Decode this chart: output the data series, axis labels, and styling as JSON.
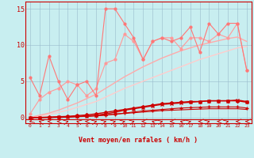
{
  "xlabel": "Vent moyen/en rafales ( km/h )",
  "xlim": [
    -0.5,
    23.5
  ],
  "ylim": [
    -0.8,
    16
  ],
  "yticks": [
    0,
    5,
    10,
    15
  ],
  "xticks": [
    0,
    1,
    2,
    3,
    4,
    5,
    6,
    7,
    8,
    9,
    10,
    11,
    12,
    13,
    14,
    15,
    16,
    17,
    18,
    19,
    20,
    21,
    22,
    23
  ],
  "bg_color": "#c8eef0",
  "grid_color": "#99bbcc",
  "lines": [
    {
      "x": [
        0,
        1,
        2,
        3,
        4,
        5,
        6,
        7,
        8,
        9,
        10,
        11,
        12,
        13,
        14,
        15,
        16,
        17,
        18,
        19,
        20,
        21,
        22,
        23
      ],
      "y": [
        0.0,
        0.2,
        0.4,
        0.7,
        1.0,
        1.4,
        1.8,
        2.2,
        2.8,
        3.4,
        4.0,
        4.5,
        5.0,
        5.5,
        6.0,
        6.5,
        7.0,
        7.5,
        8.0,
        8.4,
        8.8,
        9.2,
        9.6,
        9.8
      ],
      "color": "#ffcccc",
      "lw": 1.0,
      "marker": null,
      "alpha": 1.0
    },
    {
      "x": [
        0,
        1,
        2,
        3,
        4,
        5,
        6,
        7,
        8,
        9,
        10,
        11,
        12,
        13,
        14,
        15,
        16,
        17,
        18,
        19,
        20,
        21,
        22,
        23
      ],
      "y": [
        0.0,
        0.3,
        0.6,
        1.0,
        1.5,
        2.0,
        2.6,
        3.2,
        4.0,
        4.8,
        5.6,
        6.3,
        7.0,
        7.6,
        8.2,
        8.7,
        9.2,
        9.6,
        10.0,
        10.3,
        10.6,
        10.9,
        11.1,
        10.5
      ],
      "color": "#ffaaaa",
      "lw": 1.0,
      "marker": null,
      "alpha": 1.0
    },
    {
      "x": [
        0,
        1,
        2,
        3,
        4,
        5,
        6,
        7,
        8,
        9,
        10,
        11,
        12,
        13,
        14,
        15,
        16,
        17,
        18,
        19,
        20,
        21,
        22,
        23
      ],
      "y": [
        0.5,
        2.5,
        3.5,
        4.0,
        5.0,
        4.5,
        3.0,
        4.0,
        7.5,
        8.0,
        11.5,
        10.5,
        8.0,
        10.5,
        11.0,
        11.0,
        9.5,
        11.0,
        11.0,
        10.5,
        11.5,
        11.0,
        13.0,
        6.5
      ],
      "color": "#ff9999",
      "lw": 0.8,
      "marker": "o",
      "markersize": 2.0,
      "alpha": 1.0
    },
    {
      "x": [
        0,
        1,
        2,
        3,
        4,
        5,
        6,
        7,
        8,
        9,
        10,
        11,
        12,
        13,
        14,
        15,
        16,
        17,
        18,
        19,
        20,
        21,
        22,
        23
      ],
      "y": [
        5.5,
        3.0,
        8.5,
        5.0,
        2.5,
        4.5,
        5.0,
        3.0,
        15.0,
        15.0,
        13.0,
        11.0,
        8.0,
        10.5,
        11.0,
        10.5,
        11.0,
        12.5,
        9.0,
        13.0,
        11.5,
        13.0,
        13.0,
        6.5
      ],
      "color": "#ff7777",
      "lw": 0.8,
      "marker": "o",
      "markersize": 2.0,
      "alpha": 1.0
    },
    {
      "x": [
        0,
        1,
        2,
        3,
        4,
        5,
        6,
        7,
        8,
        9,
        10,
        11,
        12,
        13,
        14,
        15,
        16,
        17,
        18,
        19,
        20,
        21,
        22,
        23
      ],
      "y": [
        0.0,
        0.0,
        0.05,
        0.1,
        0.15,
        0.25,
        0.35,
        0.5,
        0.7,
        0.9,
        1.1,
        1.3,
        1.5,
        1.7,
        1.9,
        2.0,
        2.1,
        2.2,
        2.2,
        2.3,
        2.3,
        2.3,
        2.3,
        2.1
      ],
      "color": "#cc0000",
      "lw": 1.0,
      "marker": "D",
      "markersize": 2.0,
      "alpha": 1.0
    },
    {
      "x": [
        0,
        1,
        2,
        3,
        4,
        5,
        6,
        7,
        8,
        9,
        10,
        11,
        12,
        13,
        14,
        15,
        16,
        17,
        18,
        19,
        20,
        21,
        22,
        23
      ],
      "y": [
        0.0,
        0.0,
        0.02,
        0.05,
        0.08,
        0.12,
        0.18,
        0.25,
        0.35,
        0.45,
        0.55,
        0.65,
        0.75,
        0.85,
        0.95,
        1.0,
        1.05,
        1.1,
        1.15,
        1.2,
        1.2,
        1.2,
        1.2,
        1.1
      ],
      "color": "#cc0000",
      "lw": 0.8,
      "marker": null,
      "alpha": 1.0
    },
    {
      "x": [
        0,
        1,
        2,
        3,
        4,
        5,
        6,
        7,
        8,
        9,
        10,
        11,
        12,
        13,
        14,
        15,
        16,
        17,
        18,
        19,
        20,
        21,
        22,
        23
      ],
      "y": [
        0.0,
        0.0,
        0.0,
        0.05,
        0.1,
        0.15,
        0.2,
        0.3,
        0.5,
        0.7,
        1.0,
        1.2,
        1.4,
        1.6,
        1.8,
        1.9,
        2.0,
        2.1,
        2.2,
        2.3,
        2.3,
        2.3,
        2.4,
        2.2
      ],
      "color": "#cc0000",
      "lw": 1.0,
      "marker": "x",
      "markersize": 3.0,
      "alpha": 1.0
    },
    {
      "x": [
        0,
        1,
        2,
        3,
        4,
        5,
        6,
        7,
        8,
        9,
        10,
        11,
        12,
        13,
        14,
        15,
        16,
        17,
        18,
        19,
        20,
        21,
        22,
        23
      ],
      "y": [
        0.0,
        0.0,
        0.0,
        0.0,
        0.05,
        0.1,
        0.15,
        0.2,
        0.3,
        0.45,
        0.6,
        0.75,
        0.9,
        1.0,
        1.1,
        1.2,
        1.3,
        1.35,
        1.4,
        1.45,
        1.45,
        1.45,
        1.45,
        1.3
      ],
      "color": "#cc0000",
      "lw": 0.8,
      "marker": "+",
      "markersize": 3.0,
      "alpha": 1.0
    }
  ],
  "wind_arrows": [
    [
      0,
      225
    ],
    [
      1,
      315
    ],
    [
      2,
      270
    ],
    [
      3,
      270
    ],
    [
      4,
      45
    ],
    [
      5,
      315
    ],
    [
      6,
      270
    ],
    [
      7,
      45
    ],
    [
      8,
      45
    ],
    [
      9,
      45
    ],
    [
      10,
      45
    ],
    [
      11,
      45
    ],
    [
      12,
      270
    ],
    [
      13,
      315
    ],
    [
      14,
      45
    ],
    [
      15,
      270
    ],
    [
      16,
      315
    ],
    [
      17,
      45
    ],
    [
      18,
      270
    ],
    [
      19,
      45
    ],
    [
      20,
      270
    ],
    [
      21,
      45
    ],
    [
      22,
      270
    ],
    [
      23,
      270
    ]
  ]
}
